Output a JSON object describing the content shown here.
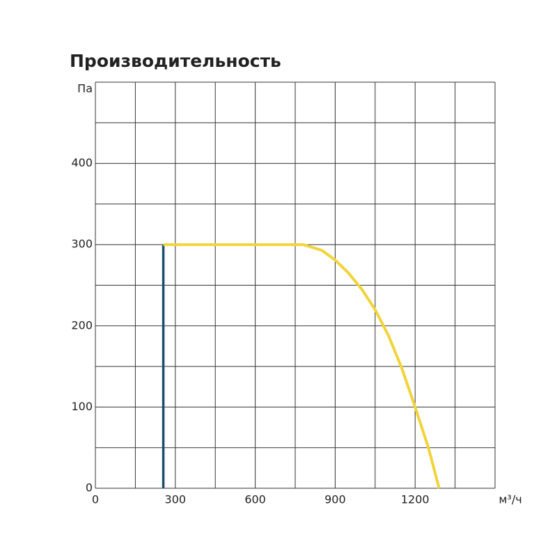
{
  "chart_data": {
    "type": "line",
    "title": "Производительность",
    "x_label": "м³/ч",
    "y_label": "Па",
    "xlim": [
      0,
      1500
    ],
    "ylim": [
      0,
      500
    ],
    "xticks": [
      0,
      300,
      600,
      900,
      1200
    ],
    "yticks": [
      0,
      100,
      200,
      300,
      400
    ],
    "x_grid": [
      0,
      150,
      300,
      450,
      600,
      750,
      900,
      1050,
      1200,
      1350,
      1500
    ],
    "y_grid": [
      0,
      50,
      100,
      150,
      200,
      250,
      300,
      350,
      400,
      450,
      500
    ],
    "grid": true,
    "series": [
      {
        "color": "#1b4d6e",
        "x": [
          255,
          255
        ],
        "values": [
          0,
          300
        ]
      },
      {
        "color": "#f2d43a",
        "x": [
          255,
          780,
          850,
          900,
          950,
          1000,
          1050,
          1100,
          1150,
          1200,
          1250,
          1290
        ],
        "values": [
          300,
          300,
          293,
          281,
          265,
          245,
          220,
          188,
          148,
          100,
          50,
          0
        ]
      }
    ]
  }
}
